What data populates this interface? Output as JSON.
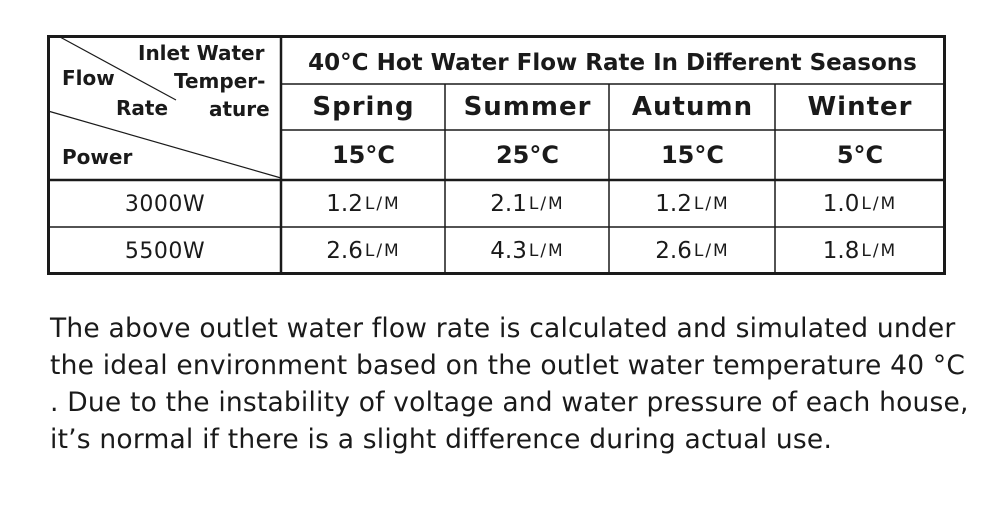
{
  "table": {
    "corner_header": {
      "inlet_line1": "Inlet Water",
      "inlet_line2": "Temper-",
      "inlet_line3": "ature",
      "flow": "Flow",
      "rate": "Rate",
      "power": "Power"
    },
    "title": "40°C Hot Water Flow Rate In Different Seasons",
    "seasons": [
      {
        "name": "Spring",
        "temp": "15°C"
      },
      {
        "name": "Summer",
        "temp": "25°C"
      },
      {
        "name": "Autumn",
        "temp": "15°C"
      },
      {
        "name": "Winter",
        "temp": "5°C"
      }
    ],
    "rows": [
      {
        "power": "3000W",
        "values": [
          {
            "num": "1.2",
            "unit": "L/M"
          },
          {
            "num": "2.1",
            "unit": "L/M"
          },
          {
            "num": "1.2",
            "unit": "L/M"
          },
          {
            "num": "1.0",
            "unit": "L/M"
          }
        ]
      },
      {
        "power": "5500W",
        "values": [
          {
            "num": "2.6",
            "unit": "L/M"
          },
          {
            "num": "4.3",
            "unit": "L/M"
          },
          {
            "num": "2.6",
            "unit": "L/M"
          },
          {
            "num": "1.8",
            "unit": "L/M"
          }
        ]
      }
    ]
  },
  "note": "The above outlet water flow rate is calculated and simulated under the ideal environment based on the outlet water temperature 40 °C . Due to the instability of voltage and water pressure of each house, it’s normal if there is a slight difference during actual use."
}
